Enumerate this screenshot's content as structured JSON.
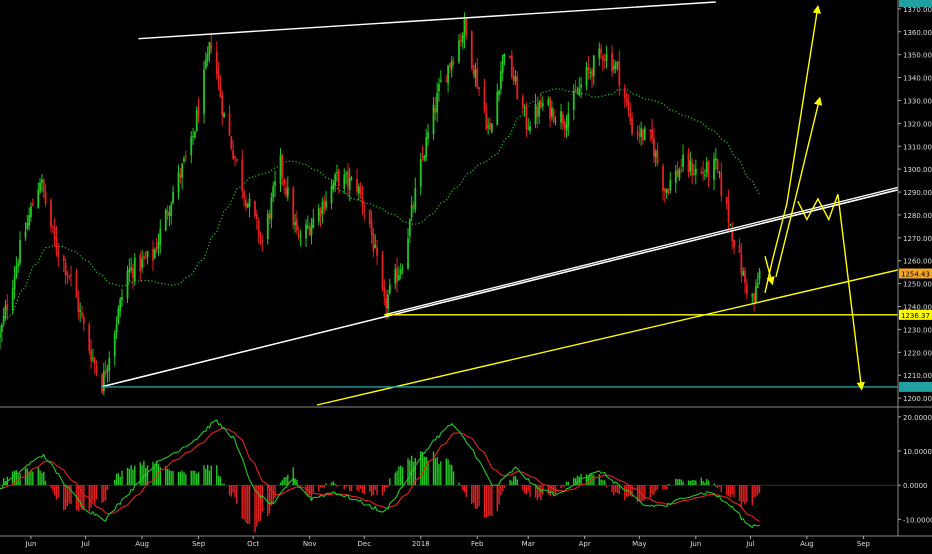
{
  "chart_data": {
    "type": "candlestick",
    "title": "",
    "price_axis": {
      "ylim": [
        1197,
        1373
      ],
      "ticks": [
        1200,
        1210,
        1220,
        1230,
        1240,
        1250,
        1260,
        1270,
        1280,
        1290,
        1300,
        1310,
        1320,
        1330,
        1340,
        1350,
        1360,
        1370
      ],
      "tick_labels": [
        "1200.00",
        "1210.00",
        "1220.00",
        "1230.00",
        "1240.00",
        "1250.00",
        "1260.00",
        "1270.00",
        "1280.00",
        "1290.00",
        "1300.00",
        "1310.00",
        "1320.00",
        "1330.00",
        "1340.00",
        "1350.00",
        "1360.00",
        "1370.00"
      ],
      "markers": [
        {
          "value": 1254.43,
          "label": "1254.43",
          "color": "#f5a623"
        },
        {
          "value": 1236.37,
          "label": "1236.37",
          "color": "#ffff00"
        },
        {
          "value": 1204.9,
          "label": "",
          "color": "#20a0a0"
        },
        {
          "value": 1373,
          "label": "",
          "color": "#20a0a0"
        }
      ]
    },
    "x_axis": {
      "start": "2017-05-15",
      "end": "2018-09-20",
      "ticks": [
        {
          "date": "2017-06-01",
          "label": "Jun"
        },
        {
          "date": "2017-07-01",
          "label": "Jul"
        },
        {
          "date": "2017-08-01",
          "label": "Aug"
        },
        {
          "date": "2017-09-01",
          "label": "Sep"
        },
        {
          "date": "2017-10-01",
          "label": "Oct"
        },
        {
          "date": "2017-11-01",
          "label": "Nov"
        },
        {
          "date": "2017-12-01",
          "label": "Dec"
        },
        {
          "date": "2018-01-01",
          "label": "2018"
        },
        {
          "date": "2018-02-01",
          "label": "Feb"
        },
        {
          "date": "2018-03-01",
          "label": "Mar"
        },
        {
          "date": "2018-04-01",
          "label": "Apr"
        },
        {
          "date": "2018-05-01",
          "label": "May"
        },
        {
          "date": "2018-06-01",
          "label": "Jun"
        },
        {
          "date": "2018-07-01",
          "label": "Jul"
        },
        {
          "date": "2018-08-01",
          "label": "Aug"
        },
        {
          "date": "2018-09-01",
          "label": "Sep"
        }
      ]
    },
    "price_path": {
      "date_range": [
        "2017-05-15",
        "2018-07-06"
      ],
      "anchors": [
        [
          "2017-05-15",
          1227
        ],
        [
          "2017-05-25",
          1262
        ],
        [
          "2017-06-06",
          1296
        ],
        [
          "2017-06-14",
          1268
        ],
        [
          "2017-06-23",
          1252
        ],
        [
          "2017-07-03",
          1222
        ],
        [
          "2017-07-10",
          1206
        ],
        [
          "2017-07-24",
          1255
        ],
        [
          "2017-08-07",
          1262
        ],
        [
          "2017-08-18",
          1290
        ],
        [
          "2017-08-28",
          1310
        ],
        [
          "2017-09-08",
          1356
        ],
        [
          "2017-09-15",
          1323
        ],
        [
          "2017-09-26",
          1290
        ],
        [
          "2017-10-06",
          1268
        ],
        [
          "2017-10-16",
          1302
        ],
        [
          "2017-10-26",
          1268
        ],
        [
          "2017-11-06",
          1282
        ],
        [
          "2017-11-16",
          1296
        ],
        [
          "2017-11-27",
          1293
        ],
        [
          "2017-12-04",
          1276
        ],
        [
          "2017-12-12",
          1240
        ],
        [
          "2017-12-22",
          1260
        ],
        [
          "2018-01-02",
          1305
        ],
        [
          "2018-01-12",
          1337
        ],
        [
          "2018-01-25",
          1362
        ],
        [
          "2018-02-08",
          1315
        ],
        [
          "2018-02-16",
          1353
        ],
        [
          "2018-02-28",
          1320
        ],
        [
          "2018-03-09",
          1328
        ],
        [
          "2018-03-21",
          1322
        ],
        [
          "2018-04-02",
          1341
        ],
        [
          "2018-04-11",
          1351
        ],
        [
          "2018-04-19",
          1344
        ],
        [
          "2018-04-27",
          1318
        ],
        [
          "2018-05-08",
          1312
        ],
        [
          "2018-05-15",
          1291
        ],
        [
          "2018-05-25",
          1302
        ],
        [
          "2018-06-04",
          1298
        ],
        [
          "2018-06-12",
          1301
        ],
        [
          "2018-06-18",
          1282
        ],
        [
          "2018-06-28",
          1250
        ],
        [
          "2018-07-03",
          1242
        ],
        [
          "2018-07-06",
          1254.43
        ]
      ]
    },
    "moving_average": {
      "color": "#21c821",
      "style": "dotted"
    },
    "trendlines": [
      {
        "name": "upper-resistance",
        "color": "#ffffff",
        "from": [
          "2017-07-10",
          1205
        ],
        "to": [
          "2018-09-20",
          1291
        ]
      },
      {
        "name": "lower-channel",
        "color": "#ffffff",
        "from": [
          "2017-07-10",
          1205
        ],
        "to": [
          "2018-09-20",
          1291
        ]
      },
      {
        "name": "top-line",
        "color": "#ffffff",
        "from": [
          "2017-07-30",
          1357
        ],
        "to": [
          "2018-06-12",
          1373
        ]
      },
      {
        "name": "dec-low-channel",
        "color": "#ffffff",
        "from": [
          "2017-12-12",
          1236.37
        ],
        "to": [
          "2018-09-20",
          1292
        ]
      },
      {
        "name": "horizontal-support",
        "color": "#ffff00",
        "from": [
          "2017-12-12",
          1236.37
        ],
        "to": [
          "2018-09-20",
          1236.37
        ]
      },
      {
        "name": "rising-support",
        "color": "#ffff00",
        "from": [
          "2017-11-05",
          1197
        ],
        "to": [
          "2018-09-20",
          1256
        ]
      },
      {
        "name": "july-low",
        "color": "#20a0a0",
        "from": [
          "2017-07-10",
          1204.9
        ],
        "to": [
          "2018-09-20",
          1204.9
        ]
      }
    ],
    "projection_arrows": [
      {
        "color": "#ffff00",
        "points": [
          [
            "2018-07-09",
            1246
          ],
          [
            "2018-07-13",
            1260
          ],
          [
            "2018-07-21",
            1285
          ],
          [
            "2018-08-07",
            1371
          ]
        ]
      },
      {
        "color": "#ffff00",
        "points": [
          [
            "2018-07-15",
            1253
          ],
          [
            "2018-07-25",
            1285
          ],
          [
            "2018-08-08",
            1331
          ]
        ]
      },
      {
        "color": "#ffff00",
        "points": [
          [
            "2018-07-09",
            1262
          ],
          [
            "2018-07-13",
            1250
          ]
        ]
      },
      {
        "color": "#ffff00",
        "points": [
          [
            "2018-07-27",
            1286
          ],
          [
            "2018-08-01",
            1278
          ],
          [
            "2018-08-07",
            1287
          ],
          [
            "2018-08-13",
            1278
          ],
          [
            "2018-08-18",
            1289
          ],
          [
            "2018-08-31",
            1204
          ]
        ]
      }
    ],
    "macd": {
      "ylim": [
        -14,
        22
      ],
      "ticks": [
        20,
        10,
        0,
        -10
      ],
      "tick_labels": [
        "20.0000",
        "10.0000",
        "0.0000",
        "-10.0000"
      ],
      "line_color": "#21c821",
      "signal_color": "#e52121",
      "hist_pos_color": "#21c821",
      "hist_neg_color": "#e52121",
      "anchors": [
        [
          "2017-05-15",
          -1
        ],
        [
          "2017-05-28",
          5
        ],
        [
          "2017-06-08",
          9
        ],
        [
          "2017-06-20",
          0
        ],
        [
          "2017-07-01",
          -7
        ],
        [
          "2017-07-12",
          -10
        ],
        [
          "2017-07-25",
          -2
        ],
        [
          "2017-08-08",
          6
        ],
        [
          "2017-08-20",
          10
        ],
        [
          "2017-09-01",
          14
        ],
        [
          "2017-09-10",
          19
        ],
        [
          "2017-09-20",
          14
        ],
        [
          "2017-10-02",
          -2
        ],
        [
          "2017-10-12",
          -6
        ],
        [
          "2017-10-22",
          2
        ],
        [
          "2017-11-02",
          -4
        ],
        [
          "2017-11-14",
          -2
        ],
        [
          "2017-11-25",
          -4
        ],
        [
          "2017-12-12",
          -8
        ],
        [
          "2017-12-25",
          2
        ],
        [
          "2018-01-06",
          12
        ],
        [
          "2018-01-18",
          18
        ],
        [
          "2018-01-30",
          10
        ],
        [
          "2018-02-10",
          -1
        ],
        [
          "2018-02-22",
          5
        ],
        [
          "2018-03-06",
          -1
        ],
        [
          "2018-03-18",
          -3
        ],
        [
          "2018-03-30",
          2
        ],
        [
          "2018-04-10",
          4
        ],
        [
          "2018-04-22",
          -1
        ],
        [
          "2018-05-04",
          -6
        ],
        [
          "2018-05-16",
          -6
        ],
        [
          "2018-05-28",
          -3
        ],
        [
          "2018-06-10",
          -2
        ],
        [
          "2018-06-22",
          -7
        ],
        [
          "2018-06-30",
          -12
        ],
        [
          "2018-07-06",
          -11.5
        ]
      ]
    }
  }
}
